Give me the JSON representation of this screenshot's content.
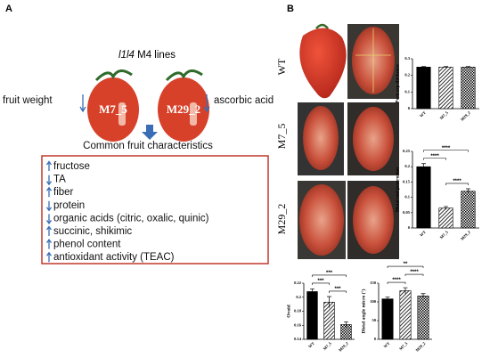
{
  "panel_a": {
    "label": "A",
    "lines_title_italic": "l1l4",
    "lines_title": "M4 lines",
    "fruit_left": "M7_5",
    "fruit_right": "M29_2",
    "left_trait": "fruit weight",
    "right_trait": "ascorbic acid",
    "heading": "Common fruit characteristics",
    "traits": [
      {
        "text": "fructose",
        "direction": "up"
      },
      {
        "text": "TA",
        "direction": "down"
      },
      {
        "text": "fiber",
        "direction": "up"
      },
      {
        "text": "protein",
        "direction": "down"
      },
      {
        "text": "organic acids (citric, oxalic, quinic)",
        "direction": "down"
      },
      {
        "text": "succinic, shikimic",
        "direction": "up"
      },
      {
        "text": "phenol content",
        "direction": "up"
      },
      {
        "text": "antioxidant activity (TEAC)",
        "direction": "up"
      }
    ]
  },
  "panel_b": {
    "label": "B",
    "rows": [
      "WT",
      "M7_5",
      "M29_2"
    ]
  },
  "chart_data": [
    {
      "type": "bar",
      "y_label": "Pericarp thickness",
      "categories": [
        "WT",
        "M7_5",
        "M29_2"
      ],
      "values": [
        0.25,
        0.25,
        0.25
      ],
      "errors": [
        0.003,
        0.003,
        0.003
      ],
      "color": "#000000",
      "patterns": [
        "solid",
        "hatch",
        "checker"
      ],
      "ylim": [
        0,
        0.3
      ],
      "yticks": [
        0,
        0.1,
        0.2,
        0.3
      ],
      "annotations": []
    },
    {
      "type": "bar",
      "y_label": "Distal end protrusion",
      "categories": [
        "WT",
        "M7_5",
        "M29_2"
      ],
      "values": [
        0.2,
        0.065,
        0.12
      ],
      "errors": [
        0.01,
        0.005,
        0.008
      ],
      "color": "#000000",
      "patterns": [
        "solid",
        "hatch",
        "checker"
      ],
      "ylim": [
        0,
        0.25
      ],
      "yticks": [
        0,
        0.05,
        0.1,
        0.15,
        0.2,
        0.25
      ],
      "annotations": [
        {
          "text": "****",
          "between": [
            "M7_5",
            "M29_2"
          ]
        },
        {
          "text": "****",
          "between": [
            "WT",
            "M7_5"
          ]
        },
        {
          "text": "****",
          "between": [
            "WT",
            "M29_2"
          ]
        }
      ]
    },
    {
      "type": "bar",
      "y_label": "Ovoid",
      "categories": [
        "WT",
        "M7_5",
        "M29_2"
      ],
      "values": [
        0.208,
        0.193,
        0.161
      ],
      "errors": [
        0.004,
        0.008,
        0.004
      ],
      "color": "#000000",
      "patterns": [
        "solid",
        "hatch",
        "checker"
      ],
      "ylim": [
        0.14,
        0.22
      ],
      "yticks": [
        0.14,
        0.16,
        0.18,
        0.2,
        0.22
      ],
      "annotations": [
        {
          "text": "***",
          "between": [
            "M7_5",
            "M29_2"
          ]
        },
        {
          "text": "***",
          "between": [
            "WT",
            "M7_5"
          ]
        },
        {
          "text": "***",
          "between": [
            "WT",
            "M29_2"
          ]
        }
      ]
    },
    {
      "type": "bar",
      "y_label": "Distal angle micro (°)",
      "categories": [
        "WT",
        "M7_5",
        "M29_2"
      ],
      "values": [
        108,
        130,
        116
      ],
      "errors": [
        5,
        8,
        6
      ],
      "color": "#000000",
      "patterns": [
        "solid",
        "hatch",
        "checker"
      ],
      "ylim": [
        0,
        150
      ],
      "yticks": [
        0,
        50,
        100,
        150
      ],
      "annotations": [
        {
          "text": "****",
          "between": [
            "WT",
            "M7_5"
          ]
        },
        {
          "text": "****",
          "between": [
            "M7_5",
            "M29_2"
          ]
        },
        {
          "text": "**",
          "between": [
            "WT",
            "M29_2"
          ]
        }
      ]
    }
  ]
}
